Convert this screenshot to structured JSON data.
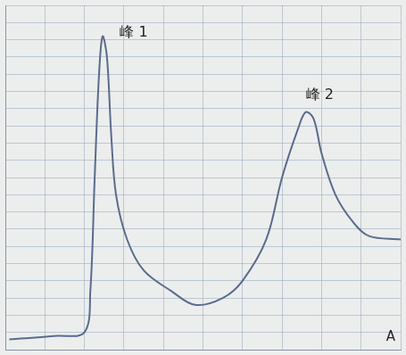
{
  "chart_data": {
    "type": "line",
    "x": [
      1,
      13,
      20,
      21.5,
      22.6,
      23.7,
      24.6,
      25.7,
      26.8,
      28,
      30.8,
      35,
      42,
      48,
      55,
      60,
      66,
      70,
      74,
      76,
      78,
      80,
      83.5,
      88,
      92,
      100
    ],
    "values": [
      3,
      4,
      5,
      17,
      50,
      80,
      91,
      85,
      62,
      45,
      32,
      23,
      17,
      13,
      15,
      20,
      32,
      50,
      64,
      69,
      67,
      57,
      45,
      37,
      33,
      32
    ],
    "color": "#5b6b8c",
    "xlim": [
      0,
      100
    ],
    "ylim": [
      0,
      100
    ],
    "xticks": [
      0,
      10,
      20,
      30,
      40,
      50,
      60,
      70,
      80,
      90,
      100
    ],
    "yticks": [
      0,
      5,
      10,
      15,
      20,
      25,
      30,
      35,
      40,
      45,
      50,
      55,
      60,
      65,
      70,
      75,
      80,
      85,
      90,
      95,
      100
    ],
    "grid": true,
    "tick_labels": false,
    "annotations": [
      {
        "text": "峰 1",
        "x": 29,
        "y": 92
      },
      {
        "text": "峰 2",
        "x": 76,
        "y": 74
      }
    ],
    "panel_label": "A"
  }
}
